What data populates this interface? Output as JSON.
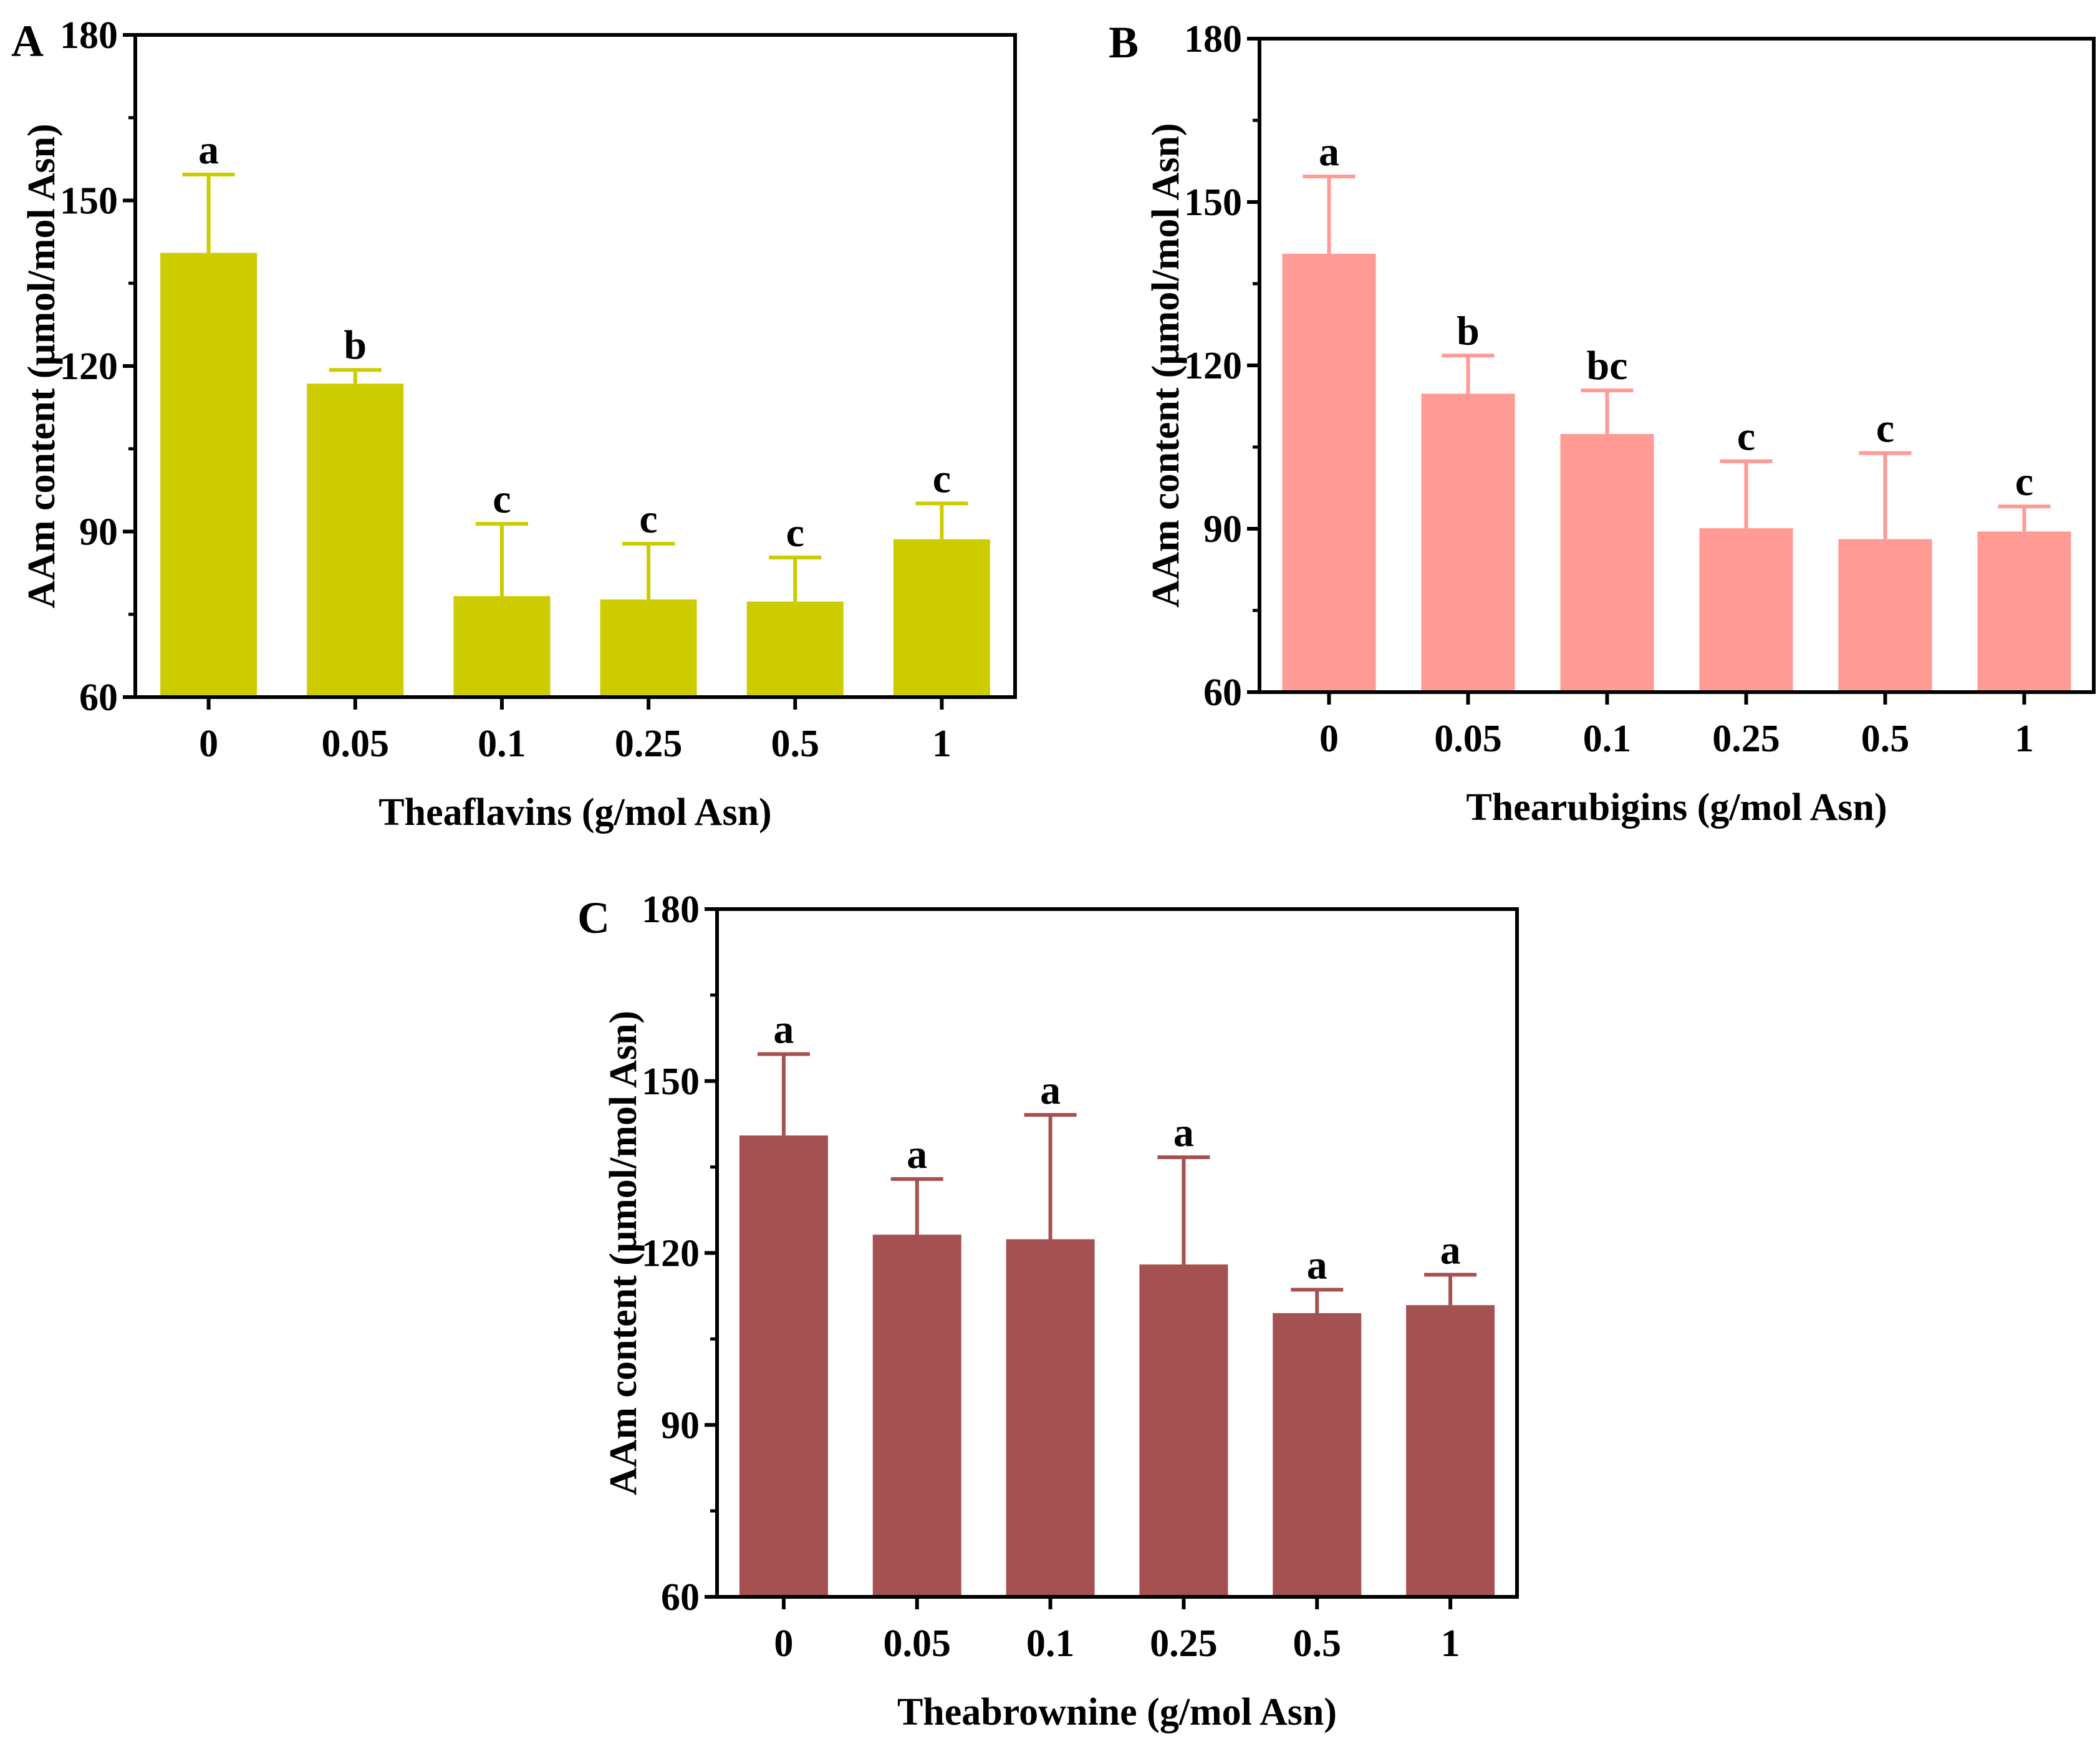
{
  "chart_data": [
    {
      "panel": "A",
      "type": "bar",
      "xlabel": "Theaflavins (g/mol Asn)",
      "ylabel": "AAm content (μmol/mol Asn)",
      "categories": [
        "0",
        "0.05",
        "0.1",
        "0.25",
        "0.5",
        "1"
      ],
      "values": [
        140.5,
        116.8,
        78.3,
        77.7,
        77.3,
        88.6
      ],
      "errors": [
        14.2,
        2.5,
        13.1,
        10.1,
        8.0,
        6.5
      ],
      "significance": [
        "a",
        "b",
        "c",
        "c",
        "c",
        "c"
      ],
      "ylim": [
        60,
        180
      ],
      "yticks": [
        "60",
        "90",
        "120",
        "150",
        "180"
      ],
      "color": "#cccc00"
    },
    {
      "panel": "B",
      "type": "bar",
      "xlabel": "Thearubigins (g/mol Asn)",
      "ylabel": "AAm content (μmol/mol Asn)",
      "categories": [
        "0",
        "0.05",
        "0.1",
        "0.25",
        "0.5",
        "1"
      ],
      "values": [
        140.5,
        114.8,
        107.4,
        90.1,
        88.1,
        89.5
      ],
      "errors": [
        14.2,
        7.0,
        8.0,
        12.3,
        15.8,
        4.6
      ],
      "significance": [
        "a",
        "b",
        "bc",
        "c",
        "c",
        "c"
      ],
      "ylim": [
        60,
        180
      ],
      "yticks": [
        "60",
        "90",
        "120",
        "150",
        "180"
      ],
      "color": "#ff9a94"
    },
    {
      "panel": "C",
      "type": "bar",
      "xlabel": "Theabrownine (g/mol Asn)",
      "ylabel": "AAm content (μmol/mol Asn)",
      "categories": [
        "0",
        "0.05",
        "0.1",
        "0.25",
        "0.5",
        "1"
      ],
      "values": [
        140.5,
        123.2,
        122.4,
        118.0,
        109.5,
        110.9
      ],
      "errors": [
        14.2,
        9.7,
        21.7,
        18.7,
        4.1,
        5.3
      ],
      "significance": [
        "a",
        "a",
        "a",
        "a",
        "a",
        "a"
      ],
      "ylim": [
        60,
        180
      ],
      "yticks": [
        "60",
        "90",
        "120",
        "150",
        "180"
      ],
      "color": "#a65151"
    }
  ]
}
